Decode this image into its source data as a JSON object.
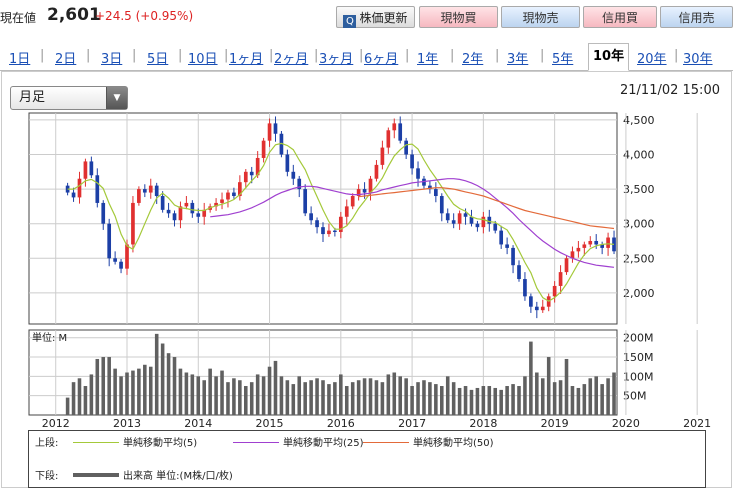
{
  "header": {
    "price_label": "現在値",
    "price_value": "2,601",
    "price_change": "+24.5 (+0.95%)",
    "refresh_label": "株価更新",
    "buttons": [
      "現物買",
      "現物売",
      "信用買",
      "信用売"
    ]
  },
  "tabs": [
    "1日",
    "2日",
    "3日",
    "5日",
    "10日",
    "1ヶ月",
    "2ヶ月",
    "3ヶ月",
    "6ヶ月",
    "1年",
    "2年",
    "3年",
    "5年",
    "10年",
    "20年",
    "30年"
  ],
  "active_tab": "10年",
  "interval_select": "月足",
  "timestamp": "21/11/02 15:00",
  "legend": {
    "upper_label": "上段:",
    "lower_label": "下段:",
    "ma5": "単純移動平均(5)",
    "ma25": "単純移動平均(25)",
    "ma50": "単純移動平均(50)",
    "volume": "出来高 単位:(M株/口/枚)"
  },
  "colors": {
    "up": "#e03030",
    "down": "#1c3fa6",
    "ma5": "#a4c93a",
    "ma25": "#a040d0",
    "ma50": "#e36a3a",
    "volume": "#606060"
  },
  "chart_data": [
    {
      "type": "candlestick",
      "interval": "monthly",
      "x_tick_labels": [
        "2012",
        "2013",
        "2014",
        "2015",
        "2016",
        "2017",
        "2018",
        "2019",
        "2020",
        "2021"
      ],
      "y_tick_labels": [
        "2,000",
        "2,500",
        "3,000",
        "3,500",
        "4,000",
        "4,500"
      ],
      "ylim": [
        1550,
        4600
      ],
      "grid": true,
      "close": [
        3450,
        3380,
        3650,
        3900,
        3700,
        3300,
        3000,
        2500,
        2450,
        2350,
        2700,
        3300,
        3500,
        3450,
        3550,
        3400,
        3200,
        3150,
        3050,
        3250,
        3300,
        3150,
        3100,
        3200,
        3250,
        3300,
        3350,
        3450,
        3400,
        3600,
        3750,
        3700,
        3950,
        4200,
        4450,
        4300,
        4000,
        3750,
        3650,
        3500,
        3150,
        3050,
        2950,
        2850,
        2900,
        2880,
        3100,
        3250,
        3400,
        3500,
        3450,
        3650,
        3850,
        4100,
        4350,
        4450,
        4200,
        4000,
        3800,
        3650,
        3550,
        3500,
        3400,
        3150,
        3050,
        3000,
        3150,
        3100,
        3000,
        2950,
        3100,
        3000,
        2900,
        2700,
        2650,
        2400,
        2200,
        1950,
        1800,
        1750,
        1800,
        1950,
        2100,
        2300,
        2500,
        2600,
        2650,
        2700,
        2750,
        2700,
        2650,
        2800,
        2601
      ],
      "series": [
        {
          "name": "単純移動平均(5)",
          "values": [
            3500,
            3500,
            3550,
            3620,
            3640,
            3590,
            3510,
            3290,
            3110,
            2850,
            2680,
            2630,
            2800,
            3000,
            3200,
            3370,
            3440,
            3370,
            3270,
            3230,
            3220,
            3200,
            3190,
            3190,
            3230,
            3260,
            3280,
            3310,
            3350,
            3420,
            3520,
            3620,
            3710,
            3840,
            4030,
            4140,
            4160,
            4130,
            4070,
            3920,
            3780,
            3580,
            3390,
            3200,
            3030,
            2920,
            2920,
            2970,
            3080,
            3220,
            3330,
            3450,
            3540,
            3660,
            3830,
            3980,
            4070,
            4140,
            4150,
            4080,
            3920,
            3780,
            3660,
            3530,
            3400,
            3280,
            3220,
            3180,
            3100,
            3070,
            3060,
            3030,
            3020,
            2960,
            2910,
            2770,
            2610,
            2440,
            2290,
            2070,
            1930,
            1880,
            1930,
            2010,
            2130,
            2280,
            2430,
            2550,
            2640,
            2680,
            2700,
            2710,
            2700
          ]
        },
        {
          "name": "単純移動平均(25)",
          "values": [
            null,
            null,
            null,
            null,
            null,
            null,
            null,
            null,
            null,
            null,
            null,
            null,
            null,
            null,
            null,
            null,
            null,
            null,
            null,
            null,
            null,
            null,
            null,
            null,
            3100,
            3110,
            3120,
            3130,
            3150,
            3170,
            3200,
            3230,
            3270,
            3310,
            3360,
            3410,
            3450,
            3480,
            3510,
            3530,
            3540,
            3540,
            3530,
            3510,
            3490,
            3470,
            3450,
            3430,
            3420,
            3420,
            3430,
            3440,
            3460,
            3490,
            3510,
            3530,
            3550,
            3570,
            3590,
            3600,
            3610,
            3620,
            3630,
            3640,
            3650,
            3650,
            3640,
            3620,
            3590,
            3550,
            3500,
            3440,
            3370,
            3300,
            3230,
            3150,
            3060,
            2980,
            2900,
            2820,
            2750,
            2690,
            2630,
            2580,
            2540,
            2500,
            2470,
            2440,
            2420,
            2400,
            2390,
            2380,
            2370
          ]
        },
        {
          "name": "単純移動平均(50)",
          "values": [
            null,
            null,
            null,
            null,
            null,
            null,
            null,
            null,
            null,
            null,
            null,
            null,
            null,
            null,
            null,
            null,
            null,
            null,
            null,
            null,
            null,
            null,
            null,
            null,
            null,
            null,
            null,
            null,
            null,
            null,
            null,
            null,
            null,
            null,
            null,
            null,
            null,
            null,
            null,
            null,
            null,
            null,
            null,
            null,
            null,
            null,
            null,
            null,
            null,
            3390,
            3400,
            3410,
            3420,
            3430,
            3440,
            3450,
            3460,
            3470,
            3480,
            3490,
            3500,
            3510,
            3520,
            3520,
            3510,
            3500,
            3480,
            3460,
            3440,
            3420,
            3400,
            3370,
            3340,
            3310,
            3280,
            3250,
            3220,
            3190,
            3170,
            3150,
            3130,
            3110,
            3090,
            3070,
            3050,
            3030,
            3010,
            2990,
            2970,
            2960,
            2950,
            2940,
            2930
          ]
        }
      ]
    },
    {
      "type": "bar",
      "ylabel": "単位: M",
      "y_tick_labels": [
        "50M",
        "100M",
        "150M",
        "200M"
      ],
      "ylim": [
        0,
        220
      ],
      "values": [
        45,
        85,
        95,
        75,
        105,
        145,
        150,
        150,
        120,
        100,
        110,
        115,
        120,
        130,
        125,
        210,
        185,
        160,
        150,
        120,
        110,
        105,
        100,
        90,
        120,
        100,
        115,
        85,
        95,
        90,
        75,
        85,
        105,
        100,
        125,
        140,
        100,
        90,
        80,
        100,
        85,
        90,
        95,
        90,
        80,
        85,
        105,
        75,
        85,
        90,
        95,
        95,
        90,
        85,
        105,
        110,
        100,
        95,
        75,
        85,
        90,
        85,
        80,
        75,
        100,
        85,
        70,
        75,
        65,
        70,
        75,
        75,
        70,
        65,
        75,
        80,
        75,
        100,
        190,
        110,
        95,
        150,
        85,
        90,
        145,
        75,
        70,
        80,
        95,
        100,
        80,
        95,
        110
      ]
    }
  ]
}
